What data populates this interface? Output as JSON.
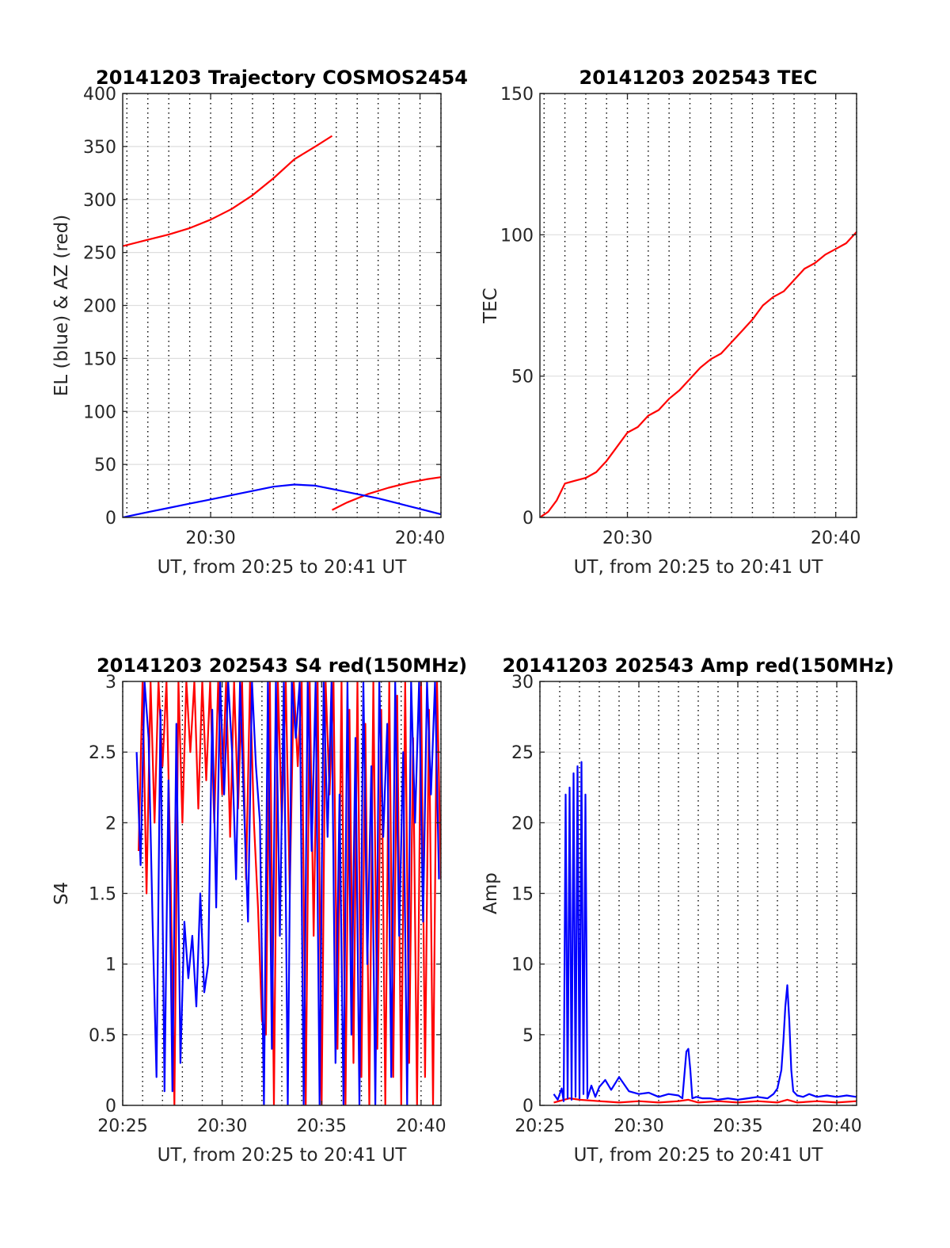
{
  "chart_data": [
    {
      "type": "line",
      "title": "20141203 Trajectory COSMOS2454",
      "xlabel": "UT, from 20:25 to 20:41 UT",
      "ylabel": "EL (blue) & AZ (red)",
      "xlim": [
        25.8,
        41.0
      ],
      "ylim": [
        0,
        400
      ],
      "xticks": [
        30,
        40
      ],
      "xtick_labels": [
        "20:30",
        "20:40"
      ],
      "yticks": [
        0,
        50,
        100,
        150,
        200,
        250,
        300,
        350,
        400
      ],
      "ytick_labels": [
        "0",
        "50",
        "100",
        "150",
        "200",
        "250",
        "300",
        "350",
        "400"
      ],
      "grid": true,
      "minor_x_dotted": true,
      "series": [
        {
          "color": "#ff0000",
          "x": [
            25.8,
            27,
            28,
            29,
            30,
            31,
            32,
            33,
            34,
            35,
            35.8
          ],
          "values": [
            256,
            262,
            267,
            273,
            281,
            291,
            304,
            320,
            338,
            350,
            360
          ]
        },
        {
          "color": "#ff0000",
          "x": [
            35.8,
            36.5,
            37.5,
            38.5,
            39.5,
            40.3,
            41.0
          ],
          "values": [
            7,
            14,
            22,
            28,
            33,
            36,
            38
          ]
        },
        {
          "color": "#0000ff",
          "x": [
            25.8,
            27,
            28,
            29,
            30,
            31,
            32,
            33,
            34,
            35,
            36,
            37,
            38,
            39,
            40,
            41
          ],
          "values": [
            0,
            5,
            9,
            13,
            17,
            21,
            25,
            29,
            31,
            30,
            26,
            22,
            18,
            13,
            8,
            3
          ]
        }
      ]
    },
    {
      "type": "line",
      "title": "20141203 202543 TEC",
      "xlabel": "UT, from 20:25 to 20:41 UT",
      "ylabel": "TEC",
      "xlim": [
        25.8,
        41.0
      ],
      "ylim": [
        0,
        150
      ],
      "xticks": [
        30,
        40
      ],
      "xtick_labels": [
        "20:30",
        "20:40"
      ],
      "yticks": [
        0,
        50,
        100,
        150
      ],
      "ytick_labels": [
        "0",
        "50",
        "100",
        "150"
      ],
      "grid": true,
      "minor_x_dotted": true,
      "series": [
        {
          "color": "#ff0000",
          "x": [
            25.8,
            26.2,
            26.6,
            27.0,
            27.5,
            28.0,
            28.5,
            29.0,
            29.5,
            30.0,
            30.5,
            31.0,
            31.5,
            32.0,
            32.5,
            33.0,
            33.5,
            34.0,
            34.5,
            35.0,
            35.5,
            36.0,
            36.5,
            37.0,
            37.5,
            38.0,
            38.5,
            39.0,
            39.5,
            40.0,
            40.5,
            41.0
          ],
          "values": [
            0,
            2,
            6,
            12,
            13,
            14,
            16,
            20,
            25,
            30,
            32,
            36,
            38,
            42,
            45,
            49,
            53,
            56,
            58,
            62,
            66,
            70,
            75,
            78,
            80,
            84,
            88,
            90,
            93,
            95,
            97,
            101
          ]
        }
      ]
    },
    {
      "type": "line",
      "title": "20141203 202543 S4 red(150MHz)",
      "xlabel": "UT, from 20:25 to 20:41 UT",
      "ylabel": "S4",
      "xlim": [
        25.0,
        41.0
      ],
      "ylim": [
        0,
        3
      ],
      "xticks": [
        25,
        30,
        35,
        40
      ],
      "xtick_labels": [
        "20:25",
        "20:30",
        "20:35",
        "20:40"
      ],
      "yticks": [
        0,
        0.5,
        1,
        1.5,
        2,
        2.5,
        3
      ],
      "ytick_labels": [
        "0",
        "0.5",
        "1",
        "1.5",
        "2",
        "2.5",
        "3"
      ],
      "grid": true,
      "minor_x_dotted": true,
      "series": [
        {
          "color": "#ff0000",
          "x": [
            25.8,
            26.0,
            26.2,
            26.4,
            26.6,
            26.8,
            27.0,
            27.2,
            27.4,
            27.6,
            27.8,
            28.0,
            28.2,
            28.4,
            28.6,
            28.8,
            29.0,
            29.2,
            29.4,
            29.6,
            29.8,
            30.0,
            30.2,
            30.4,
            30.6,
            30.8,
            31.0,
            31.2,
            31.4,
            31.6,
            31.8,
            32.0,
            32.2,
            32.4,
            32.6,
            32.8,
            33.0,
            33.2,
            33.4,
            33.6,
            33.8,
            34.0,
            34.2,
            34.4,
            34.6,
            34.8,
            35.0,
            35.2,
            35.4,
            35.6,
            35.8,
            36.0,
            36.2,
            36.4,
            36.6,
            36.8,
            37.0,
            37.2,
            37.4,
            37.6,
            37.8,
            38.0,
            38.2,
            38.4,
            38.6,
            38.8,
            39.0,
            39.2,
            39.4,
            39.6,
            39.8,
            40.0,
            40.2,
            40.4,
            40.6,
            40.8,
            41.0
          ],
          "values": [
            1.8,
            3.0,
            1.5,
            3.0,
            2.0,
            3.0,
            2.4,
            3.0,
            1.7,
            0.0,
            3.0,
            2.0,
            3.0,
            2.5,
            3.0,
            2.1,
            3.0,
            2.3,
            3.0,
            2.0,
            3.0,
            2.2,
            3.0,
            1.9,
            3.0,
            2.1,
            3.0,
            1.6,
            3.0,
            2.0,
            1.4,
            0.6,
            0.5,
            3.0,
            0.0,
            3.0,
            2.0,
            3.0,
            1.5,
            3.0,
            2.4,
            3.0,
            0.0,
            3.0,
            1.2,
            3.0,
            0.0,
            3.0,
            2.2,
            3.0,
            0.4,
            3.0,
            0.0,
            2.8,
            0.3,
            3.0,
            0.2,
            2.7,
            0.0,
            3.0,
            0.4,
            2.8,
            0.0,
            3.0,
            0.2,
            2.9,
            0.0,
            3.0,
            0.3,
            2.6,
            0.0,
            3.0,
            0.2,
            2.8,
            0.0,
            3.0,
            1.6
          ]
        },
        {
          "color": "#0000ff",
          "x": [
            25.7,
            25.9,
            26.1,
            26.3,
            26.5,
            26.7,
            26.9,
            27.1,
            27.3,
            27.5,
            27.7,
            27.9,
            28.1,
            28.3,
            28.5,
            28.7,
            28.9,
            29.1,
            29.3,
            29.5,
            29.7,
            29.9,
            30.1,
            30.3,
            30.5,
            30.7,
            30.9,
            31.1,
            31.3,
            31.5,
            31.7,
            31.9,
            32.1,
            32.3,
            32.5,
            32.7,
            32.9,
            33.1,
            33.3,
            33.5,
            33.7,
            33.9,
            34.1,
            34.3,
            34.5,
            34.7,
            34.9,
            35.1,
            35.3,
            35.5,
            35.7,
            35.9,
            36.1,
            36.3,
            36.5,
            36.7,
            36.9,
            37.1,
            37.3,
            37.5,
            37.7,
            37.9,
            38.1,
            38.3,
            38.5,
            38.7,
            38.9,
            39.1,
            39.3,
            39.5,
            39.7,
            39.9,
            40.1,
            40.3,
            40.5,
            40.7,
            40.9
          ],
          "values": [
            2.5,
            1.7,
            3.0,
            2.6,
            1.3,
            0.2,
            2.8,
            0.1,
            2.3,
            0.1,
            2.7,
            0.3,
            1.3,
            0.9,
            1.2,
            0.7,
            1.5,
            0.8,
            1.0,
            2.8,
            1.4,
            3.0,
            2.2,
            3.0,
            2.5,
            1.6,
            3.0,
            2.1,
            1.3,
            3.0,
            2.4,
            2.0,
            0.0,
            3.0,
            0.4,
            3.0,
            1.2,
            3.0,
            0.0,
            3.0,
            2.6,
            3.0,
            0.0,
            3.0,
            1.8,
            3.0,
            0.0,
            3.0,
            1.9,
            3.0,
            0.3,
            2.2,
            0.0,
            3.0,
            0.5,
            2.6,
            0.0,
            3.0,
            1.0,
            2.4,
            0.0,
            3.0,
            1.9,
            2.7,
            0.2,
            3.0,
            1.2,
            2.5,
            0.0,
            3.0,
            2.0,
            3.0,
            1.3,
            3.0,
            2.2,
            3.0,
            1.6
          ]
        }
      ]
    },
    {
      "type": "line",
      "title": "20141203 202543 Amp red(150MHz)",
      "xlabel": "UT, from 20:25 to 20:41 UT",
      "ylabel": "Amp",
      "xlim": [
        25.0,
        41.0
      ],
      "ylim": [
        0,
        30
      ],
      "xticks": [
        25,
        30,
        35,
        40
      ],
      "xtick_labels": [
        "20:25",
        "20:30",
        "20:35",
        "20:40"
      ],
      "yticks": [
        0,
        5,
        10,
        15,
        20,
        25,
        30
      ],
      "ytick_labels": [
        "0",
        "5",
        "10",
        "15",
        "20",
        "25",
        "30"
      ],
      "grid": true,
      "minor_x_dotted": true,
      "series": [
        {
          "color": "#ff0000",
          "x": [
            25.7,
            26.5,
            27.0,
            28.0,
            29.0,
            30.0,
            31.0,
            32.0,
            32.5,
            33.0,
            34.0,
            35.0,
            36.0,
            37.0,
            37.5,
            38.0,
            39.0,
            40.0,
            41.0
          ],
          "values": [
            0.2,
            0.5,
            0.4,
            0.3,
            0.2,
            0.3,
            0.2,
            0.3,
            0.4,
            0.2,
            0.3,
            0.2,
            0.3,
            0.2,
            0.4,
            0.2,
            0.3,
            0.2,
            0.3
          ]
        },
        {
          "color": "#0000ff",
          "x": [
            25.7,
            25.9,
            26.1,
            26.2,
            26.3,
            26.4,
            26.5,
            26.6,
            26.7,
            26.8,
            26.9,
            27.0,
            27.1,
            27.2,
            27.3,
            27.4,
            27.6,
            27.8,
            28.0,
            28.3,
            28.6,
            29.0,
            29.5,
            30.0,
            30.5,
            31.0,
            31.5,
            32.0,
            32.2,
            32.4,
            32.5,
            32.6,
            32.7,
            32.9,
            33.2,
            33.6,
            34.0,
            34.5,
            35.0,
            35.5,
            36.0,
            36.5,
            36.8,
            37.0,
            37.2,
            37.3,
            37.4,
            37.5,
            37.6,
            37.7,
            37.8,
            38.0,
            38.3,
            38.6,
            39.0,
            39.5,
            40.0,
            40.5,
            41.0
          ],
          "values": [
            0.8,
            0.4,
            1.2,
            0.3,
            22.0,
            0.5,
            22.5,
            0.4,
            23.5,
            0.6,
            24.0,
            0.5,
            24.3,
            0.8,
            22.0,
            0.5,
            1.4,
            0.6,
            1.3,
            1.8,
            1.1,
            2.0,
            1.0,
            0.8,
            0.9,
            0.6,
            0.8,
            0.7,
            0.5,
            3.8,
            4.0,
            2.5,
            0.5,
            0.6,
            0.5,
            0.5,
            0.4,
            0.5,
            0.4,
            0.5,
            0.6,
            0.5,
            0.8,
            1.2,
            2.5,
            4.5,
            7.0,
            8.5,
            6.0,
            2.5,
            1.0,
            0.7,
            0.6,
            0.8,
            0.6,
            0.7,
            0.6,
            0.7,
            0.6
          ]
        }
      ]
    }
  ]
}
